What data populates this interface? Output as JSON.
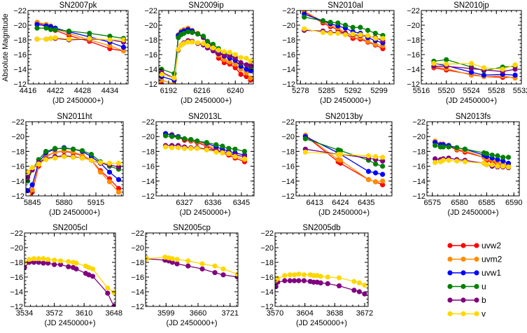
{
  "chart_data": {
    "type": "line",
    "ylabel": "Absolute Magnitude",
    "xlabel": "(JD 2450000+)",
    "ylim": [
      -12,
      -22
    ],
    "y_inverted": true,
    "yticks": [
      -22,
      -20,
      -18,
      -16,
      -14,
      -12
    ],
    "grid": false,
    "legend_placement": "bottom-right",
    "bands": [
      {
        "key": "uvw2",
        "name": "uvw2",
        "color": "#ff0000"
      },
      {
        "key": "uvm2",
        "name": "uvm2",
        "color": "#ff8c00"
      },
      {
        "key": "uvw1",
        "name": "uvw1",
        "color": "#0000ff"
      },
      {
        "key": "u",
        "name": "u",
        "color": "#008000"
      },
      {
        "key": "b",
        "name": "b",
        "color": "#800080"
      },
      {
        "key": "v",
        "name": "v",
        "color": "#ffd700"
      }
    ],
    "panels": [
      {
        "title": "SN2007pk",
        "xlim": [
          4416,
          4438
        ],
        "xticks": [
          4416,
          4422,
          4428,
          4434
        ],
        "x": [
          4418,
          4420,
          4421,
          4422,
          4425,
          4429.5,
          4434,
          4437
        ],
        "series": {
          "uvw2": [
            -20.3,
            -20.0,
            -19.7,
            -19.3,
            -18.6,
            -17.8,
            -16.8,
            -16.5
          ],
          "uvm2": [
            -20.4,
            -20.1,
            -19.9,
            -19.5,
            -18.9,
            -18.0,
            -17.2,
            -16.5
          ],
          "uvw1": [
            -20.1,
            -19.9,
            -19.8,
            -19.6,
            -19.1,
            -18.4,
            -17.7,
            -17.0
          ],
          "u": [
            -19.6,
            -19.6,
            -19.4,
            -19.4,
            -19.2,
            -18.9,
            -18.5,
            -18.2
          ],
          "b": [
            -18.1,
            -18.1,
            -18.2,
            -18.2,
            -18.0,
            -18.1,
            -18.0,
            -17.7
          ],
          "v": [
            -18.1,
            -18.1,
            -18.2,
            -18.3,
            -18.1,
            -18.2,
            -18.0,
            -18.0
          ]
        }
      },
      {
        "title": "SN2009ip",
        "xlim": [
          6185,
          6253
        ],
        "xticks": [
          6192,
          6216,
          6240
        ],
        "x": [
          6187,
          6196,
          6199,
          6201,
          6203,
          6206,
          6209,
          6213,
          6217,
          6220,
          6224,
          6228,
          6232,
          6236,
          6240,
          6244,
          6248,
          6251
        ],
        "series": {
          "uvw2": [
            -12,
            -11.5,
            -18.5,
            -19,
            -19.3,
            -19.5,
            -19.2,
            -18.8,
            -18.3,
            -17.5,
            -16.7,
            -15.5,
            -14.9,
            -14.7,
            -14.2,
            -13.3,
            -13,
            -12.5
          ],
          "uvm2": [
            -12.5,
            -12,
            -18.7,
            -19.2,
            -19.4,
            -19.6,
            -19.3,
            -18.9,
            -18.4,
            -17.6,
            -16.9,
            -15.9,
            -15.3,
            -15,
            -14.7,
            -14,
            -13.5,
            -12.8
          ],
          "uvw1": [
            -13,
            -12.5,
            -18.6,
            -19,
            -19.2,
            -19.4,
            -19.2,
            -18.8,
            -18.4,
            -17.7,
            -17.1,
            -16.4,
            -15.8,
            -15.5,
            -15.2,
            -14.4,
            -14,
            -13.8
          ],
          "u": [
            -14,
            -13.4,
            -18.3,
            -18.7,
            -18.9,
            -19.1,
            -19,
            -18.8,
            -18.5,
            -17.8,
            -17.4,
            -16.8,
            -16.2,
            -15.9,
            -15.6,
            -14.8,
            -14.6,
            -14.3
          ],
          "b": [
            -13.6,
            -12.8,
            -16.6,
            -17.3,
            -17.6,
            -17.9,
            -17.8,
            -17.5,
            -17.3,
            -16.9,
            -16.5,
            -16.1,
            -15.9,
            -15.8,
            -15.5,
            -14.9,
            -14.6,
            -14.5
          ],
          "v": [
            -13.3,
            -12.8,
            -16.7,
            -17.3,
            -17.5,
            -17.7,
            -17.7,
            -17.6,
            -17.5,
            -17.2,
            -16.9,
            -16.6,
            -16.4,
            -16.3,
            -16,
            -15.6,
            -15.5,
            -15.1
          ]
        }
      },
      {
        "title": "SN2010al",
        "xlim": [
          5277,
          5303
        ],
        "xticks": [
          5278,
          5285,
          5292,
          5299
        ],
        "x": [
          5279,
          5284,
          5286,
          5288,
          5290,
          5292,
          5294,
          5296,
          5298,
          5300
        ],
        "series": {
          "uvw2": [
            -21.8,
            -20.3,
            -19.8,
            -19.4,
            -18.8,
            -18.2,
            -18.1,
            -17.7,
            -17.3,
            -16.8
          ],
          "uvm2": [
            -21.9,
            -20.5,
            -20.0,
            -19.6,
            -19.0,
            -18.5,
            -18.3,
            -17.8,
            -17.4,
            -17.2
          ],
          "uvw1": [
            -21.5,
            -20.6,
            -20.2,
            -19.9,
            -19.6,
            -19.1,
            -18.9,
            -18.3,
            -17.9,
            -17.6
          ],
          "u": [
            -21.1,
            -20.6,
            -20.4,
            -20.3,
            -20.0,
            -19.7,
            -19.7,
            -19.3,
            -18.9,
            -18.6
          ],
          "b": [
            -19.3,
            -19.2,
            -19.0,
            -19.0,
            -18.9,
            -18.7,
            -18.6,
            -18.5,
            -18.3,
            -17.9
          ],
          "v": [
            -19.5,
            -19.0,
            -18.9,
            -18.9,
            -18.7,
            -18.8,
            -18.7,
            -18.6,
            -18.2,
            -18.2
          ]
        }
      },
      {
        "title": "SN2010jp",
        "xlim": [
          5516,
          5532
        ],
        "xticks": [
          5516,
          5520,
          5524,
          5528,
          5532
        ],
        "x": [
          5518,
          5520,
          5524,
          5526,
          5529,
          5531
        ],
        "series": {
          "uvw2": [
            -14.2,
            -13.9,
            -13.3,
            -13.0,
            -12.9,
            -12.9
          ],
          "uvm2": [
            -14.3,
            -14.1,
            -13.2,
            -13.0,
            -13.1,
            -12.8
          ],
          "uvw1": [
            -14.8,
            -14.5,
            -13.6,
            -13.2,
            -13.3,
            -13.2
          ],
          "u": [
            -15.1,
            -15.3,
            -14.3,
            -13.8,
            -14.3,
            -14.4
          ],
          "b": [
            -14.4,
            -14.4,
            -14.1,
            -13.9,
            -13.7,
            -14.0
          ],
          "v": [
            -14.8,
            -14.7,
            -14.8,
            -14.2,
            -14.0,
            -14.6
          ]
        }
      },
      {
        "title": "SN2011ht",
        "xlim": [
          5838,
          5945
        ],
        "xticks": [
          5845,
          5880,
          5915
        ],
        "x": [
          5840,
          5845,
          5852,
          5860,
          5870,
          5880,
          5890,
          5900,
          5910,
          5920,
          5930,
          5940
        ],
        "series": {
          "uvw2": [
            -11,
            -12.5,
            -16,
            -17.3,
            -17.9,
            -18,
            -17.8,
            -17.4,
            -16.8,
            -15.4,
            -14.3,
            -13
          ],
          "uvm2": [
            -11.5,
            -12.8,
            -16.2,
            -17.4,
            -17.9,
            -18.1,
            -17.9,
            -17.5,
            -16.8,
            -15.2,
            -13.9,
            -12.5
          ],
          "uvw1": [
            -12.7,
            -13.5,
            -16.5,
            -17.8,
            -18.3,
            -18.5,
            -18.3,
            -18,
            -17.3,
            -16.4,
            -15.2,
            -14.2
          ],
          "u": [
            -14,
            -15.5,
            -16.9,
            -18,
            -18.4,
            -18.4,
            -18.3,
            -18.1,
            -17.6,
            -16.6,
            -16,
            -15.6
          ],
          "b": [
            -14.5,
            -15.5,
            -16.5,
            -17,
            -17.3,
            -17.4,
            -17.3,
            -17.1,
            -16.8,
            -16.4,
            -16.2,
            -15.9
          ],
          "v": [
            -15.2,
            -15.8,
            -16.3,
            -16.9,
            -17.1,
            -17.3,
            -17.2,
            -17.1,
            -16.8,
            -16.5,
            -16.4,
            -16.4
          ]
        }
      },
      {
        "title": "SN2013L",
        "xlim": [
          6318,
          6349
        ],
        "xticks": [
          6327,
          6336,
          6345
        ],
        "x": [
          6321,
          6323,
          6325,
          6327,
          6329,
          6331,
          6334,
          6337,
          6339,
          6341,
          6343,
          6346
        ],
        "series": {
          "uvw2": [
            -20.4,
            -20.2,
            -19.9,
            -19.5,
            -19.4,
            -19.2,
            -18.7,
            -18.1,
            -17.8,
            -17.5,
            -17.1,
            -16.6
          ],
          "uvm2": [
            -20.4,
            -20.3,
            -20.0,
            -19.7,
            -19.5,
            -19.3,
            -18.9,
            -18.3,
            -18.0,
            -17.7,
            -17.3,
            -16.9
          ],
          "uvw1": [
            -20.4,
            -20.2,
            -20.0,
            -19.7,
            -19.6,
            -19.4,
            -19.1,
            -18.6,
            -18.3,
            -18.0,
            -17.8,
            -17.5
          ],
          "u": [
            -20.1,
            -20.0,
            -19.9,
            -19.7,
            -19.6,
            -19.4,
            -19.2,
            -18.9,
            -18.7,
            -18.4,
            -18.3,
            -18.0
          ],
          "b": [
            -18.8,
            -18.8,
            -18.8,
            -18.6,
            -18.5,
            -18.5,
            -18.3,
            -18.1,
            -17.9,
            -17.8,
            -17.5,
            -17.3
          ],
          "v": [
            -18.6,
            -18.5,
            -18.5,
            -18.4,
            -18.4,
            -18.4,
            -18.2,
            -17.9,
            -17.8,
            -17.7,
            -17.3,
            -17.0
          ]
        }
      },
      {
        "title": "SN2013by",
        "xlim": [
          6405,
          6446
        ],
        "xticks": [
          6413,
          6424,
          6435
        ],
        "x": [
          6409,
          6423,
          6424,
          6436,
          6439,
          6442
        ],
        "series": {
          "uvw2": [
            -20.1,
            -16.6,
            -16.4,
            -14.2,
            -13.9,
            -13.5
          ],
          "uvm2": [
            -20.2,
            -16.9,
            -16.8,
            -14.2,
            -13.9,
            -14.0
          ],
          "uvw1": [
            -20.0,
            -17.8,
            -17.6,
            -15.3,
            -15.1,
            -14.9
          ],
          "u": [
            -19.7,
            -18.2,
            -18.1,
            -16.8,
            -16.3,
            -16.0
          ],
          "b": [
            -18.3,
            -17.6,
            -17.6,
            -17.1,
            -16.9,
            -16.7
          ],
          "v": [
            -17.9,
            -17.6,
            -17.6,
            -17.4,
            -17.3,
            -17.2
          ]
        }
      },
      {
        "title": "SN2013fs",
        "xlim": [
          6574,
          6591
        ],
        "xticks": [
          6575,
          6580,
          6585,
          6590
        ],
        "x": [
          6575.5,
          6576.5,
          6577,
          6578,
          6579.5,
          6581,
          6584.5,
          6585,
          6586,
          6587,
          6588,
          6589
        ],
        "series": {
          "uvw2": [
            -19.3,
            -18.9,
            -18.9,
            -18.7,
            -18.2,
            -17.9,
            -17.2,
            -16.8,
            -16.6,
            -16.2,
            -16.1,
            -16.0
          ],
          "uvm2": [
            -19.4,
            -19.0,
            -19.0,
            -18.8,
            -18.3,
            -18.1,
            -17.2,
            -17.0,
            -16.9,
            -16.5,
            -16.3,
            -16.2
          ],
          "uvw1": [
            -19.2,
            -18.9,
            -18.9,
            -18.8,
            -18.5,
            -18.3,
            -17.5,
            -17.3,
            -17.1,
            -16.9,
            -16.7,
            -16.4
          ],
          "u": [
            -18.8,
            -18.6,
            -18.6,
            -18.6,
            -18.5,
            -18.3,
            -17.8,
            -17.7,
            -17.5,
            -17.4,
            -17.2,
            -17.2
          ],
          "b": [
            -17.0,
            -16.9,
            -17.0,
            -17.1,
            -16.9,
            -16.8,
            -16.4,
            -16.2,
            -16.0,
            -15.9,
            -15.9,
            -15.8
          ],
          "v": [
            -16.5,
            -16.6,
            -16.8,
            -16.8,
            -16.7,
            -16.6,
            -16.4,
            -16.2,
            -16.2,
            -16.0,
            -16.0,
            -15.9
          ]
        }
      },
      {
        "title": "SN2005cl",
        "xlim": [
          3534,
          3650
        ],
        "xticks": [
          3534,
          3572,
          3610,
          3648
        ],
        "x": [
          3534,
          3540,
          3546,
          3552,
          3558,
          3564,
          3572,
          3580,
          3590,
          3596,
          3600,
          3612,
          3616,
          3621,
          3640,
          3648
        ],
        "series": {
          "b": [
            -17.3,
            -18.0,
            -18.0,
            -18.0,
            -17.9,
            -17.9,
            -17.7,
            -17.7,
            -17.4,
            -17.3,
            -17.1,
            -16.5,
            -16.3,
            -16.1,
            -13.8,
            -12.0
          ],
          "v": [
            -18.0,
            -18.4,
            -18.5,
            -18.5,
            -18.5,
            -18.4,
            -18.3,
            -18.2,
            -18.1,
            -18.0,
            -17.9,
            -17.5,
            -17.3,
            -17.1,
            -14.5,
            -13.9
          ]
        }
      },
      {
        "title": "SN2005cp",
        "xlim": [
          3560,
          3736
        ],
        "xticks": [
          3599,
          3660,
          3721
        ],
        "x": [
          3562,
          3597,
          3604,
          3611,
          3620,
          3641,
          3668,
          3692,
          3708,
          3735
        ],
        "series": {
          "b": [
            -18.5,
            -18.3,
            -18.2,
            -18.0,
            -17.8,
            -17.5,
            -17.1,
            -16.6,
            -16.3,
            -16.0
          ],
          "v": [
            -18.5,
            -18.7,
            -18.6,
            -18.5,
            -18.4,
            -18.2,
            -17.8,
            -17.5,
            -17.1,
            -16.4
          ]
        }
      },
      {
        "title": "SN2005db",
        "xlim": [
          3570,
          3676
        ],
        "xticks": [
          3570,
          3604,
          3638,
          3672
        ],
        "x": [
          3571,
          3573,
          3581,
          3587,
          3592,
          3597,
          3603,
          3610,
          3614,
          3618,
          3622,
          3630,
          3643,
          3660,
          3666,
          3672
        ],
        "series": {
          "b": [
            -14.7,
            -15.3,
            -15.5,
            -15.5,
            -15.5,
            -15.5,
            -15.5,
            -15.4,
            -15.3,
            -15.3,
            -15.2,
            -15.1,
            -14.8,
            -14.2,
            -14.0,
            -13.7
          ],
          "v": [
            -15.6,
            -15.8,
            -16.2,
            -16.3,
            -16.3,
            -16.4,
            -16.3,
            -16.3,
            -16.2,
            -16.2,
            -16.1,
            -16.0,
            -15.9,
            -15.4,
            -15.2,
            -14.9
          ]
        }
      }
    ]
  }
}
